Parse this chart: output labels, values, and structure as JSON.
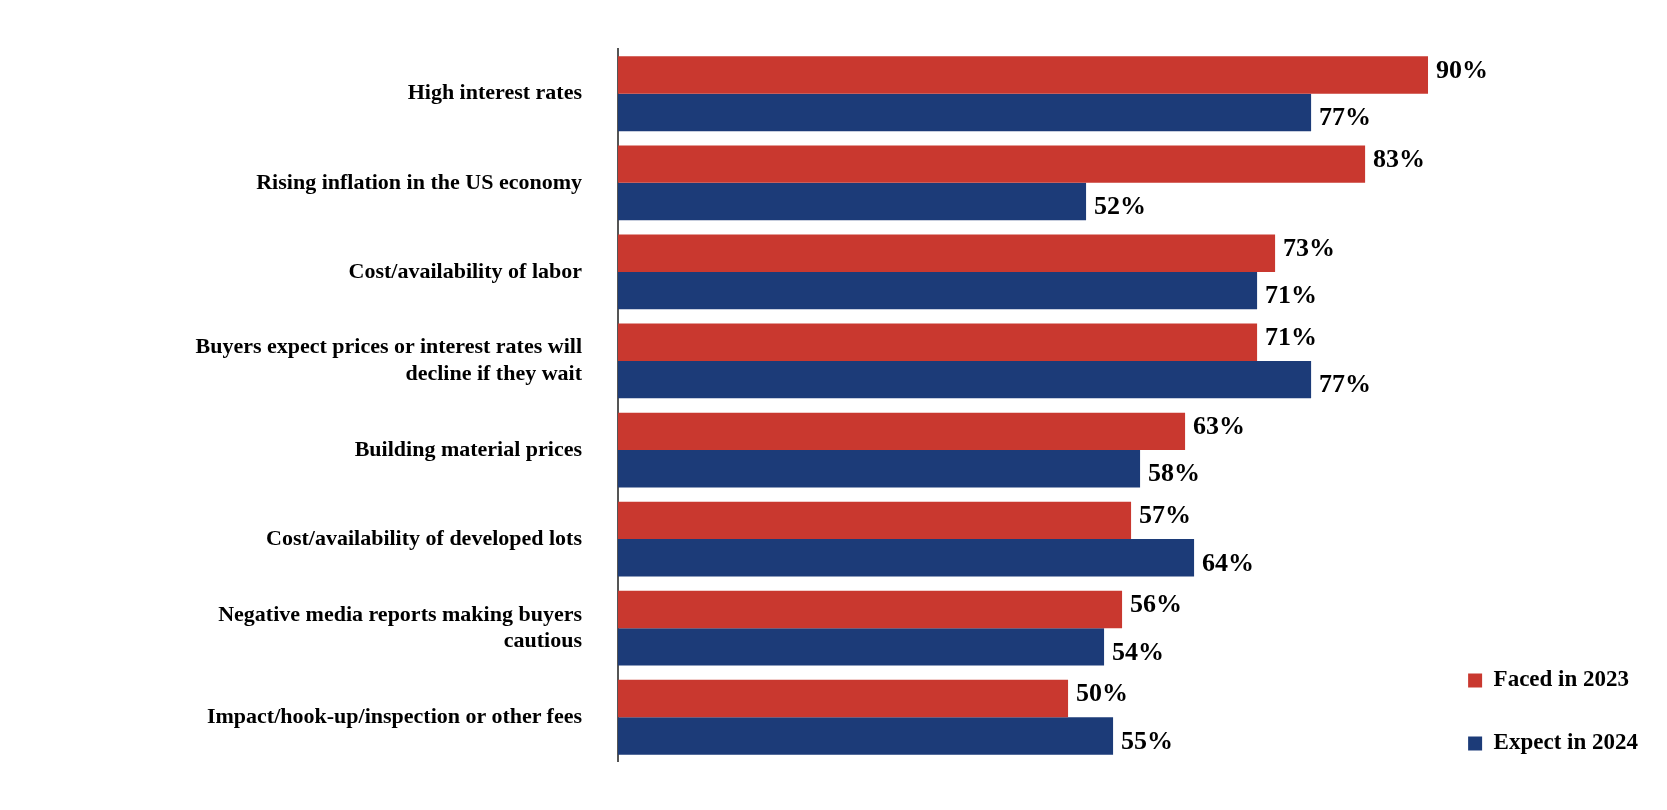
{
  "chart_data": {
    "type": "bar",
    "orientation": "horizontal",
    "legend": "bottom right",
    "tick_labels": "y",
    "categories": [
      "High interest rates",
      "Rising inflation in the US economy",
      "Cost/availability of labor",
      "Buyers expect prices or interest rates will decline if they wait",
      "Building material prices",
      "Cost/availability of developed lots",
      "Negative media reports making buyers cautious",
      "Impact/hook-up/inspection or other fees"
    ],
    "series": [
      {
        "name": "Faced in 2023",
        "color": "#c9382f",
        "values": [
          90,
          83,
          73,
          71,
          63,
          57,
          56,
          50
        ],
        "value_labels": [
          "90%",
          "83%",
          "73%",
          "71%",
          "63%",
          "57%",
          "56%",
          "50%"
        ]
      },
      {
        "name": "Expect in 2024",
        "color": "#1c3b78",
        "values": [
          77,
          52,
          71,
          77,
          58,
          64,
          54,
          55
        ],
        "value_labels": [
          "77%",
          "52%",
          "71%",
          "77%",
          "58%",
          "64%",
          "54%",
          "55%"
        ]
      }
    ]
  }
}
